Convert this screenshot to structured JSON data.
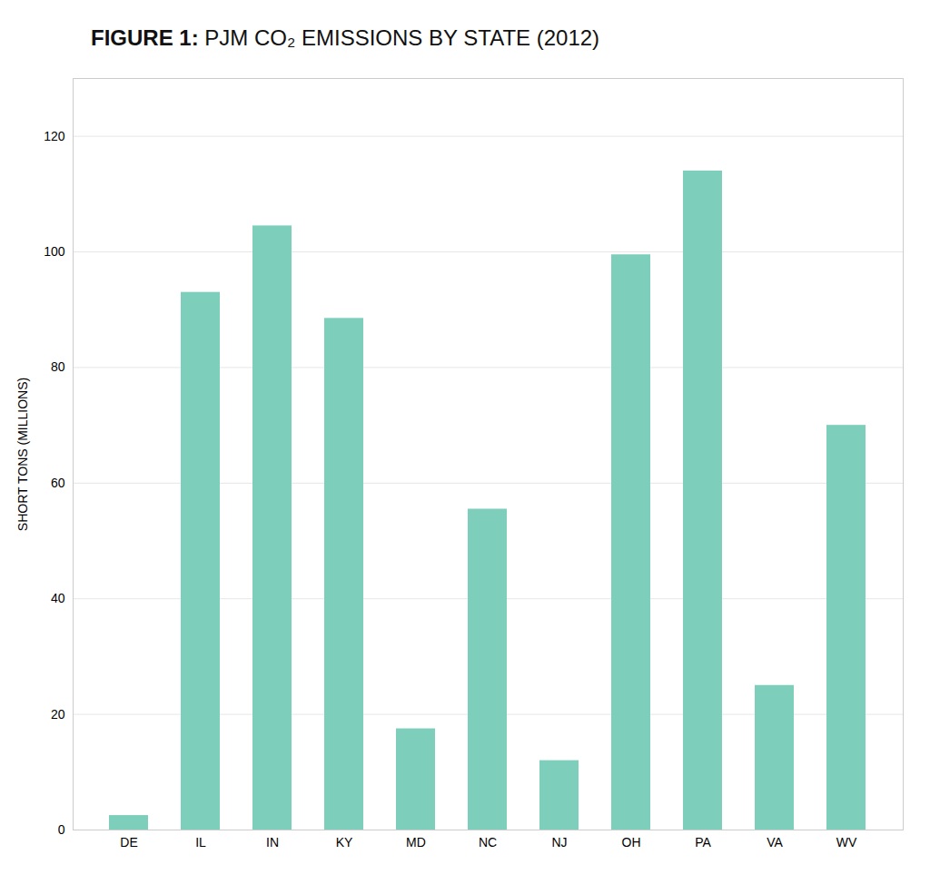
{
  "chart_data": {
    "type": "bar",
    "title": "FIGURE 1: PJM CO₂ EMISSIONS BY STATE (2012)",
    "ylabel": "SHORT TONS (MILLIONS)",
    "categories": [
      "DE",
      "IL",
      "IN",
      "KY",
      "MD",
      "NC",
      "NJ",
      "OH",
      "PA",
      "VA",
      "WV"
    ],
    "values": [
      2.5,
      93,
      104.5,
      88.5,
      17.5,
      55.5,
      12,
      99.5,
      114,
      25,
      70
    ],
    "color": "#7DCFBB",
    "ylim": [
      0,
      130
    ],
    "yticks": [
      0,
      20,
      40,
      60,
      80,
      100,
      120
    ],
    "grid": true
  }
}
